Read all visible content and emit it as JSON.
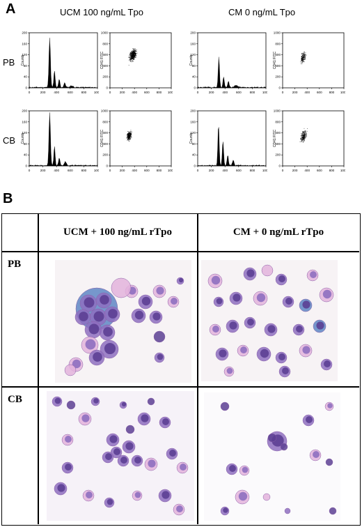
{
  "panel_a": {
    "letter": "A",
    "conditions": [
      "UCM 100 ng/mL Tpo",
      "CM 0 ng/mL Tpo"
    ],
    "rows": [
      "PB",
      "CB"
    ],
    "histogram": {
      "y_axis_label": "Counts",
      "x_ticks": [
        "0",
        "200",
        "400",
        "600",
        "800",
        "1000"
      ],
      "y_ticks": [
        "0",
        "40",
        "80",
        "120",
        "160",
        "200"
      ]
    },
    "scatter": {
      "y_axis_label": "CD41 FITC",
      "x_ticks": [
        "0",
        "200",
        "400",
        "600",
        "800",
        "1000"
      ],
      "y_ticks": [
        "0",
        "200",
        "400",
        "600",
        "800",
        "1000"
      ]
    }
  },
  "panel_b": {
    "letter": "B",
    "columns": [
      "UCM + 100 ng/mL rTpo",
      "CM + 0 ng/mL rTpo"
    ],
    "rows": [
      "PB",
      "CB"
    ]
  },
  "colors": {
    "micro_background": "#f7f3f5",
    "cell_purple": "#8e6fc0",
    "cell_pink": "#e3b3dc",
    "nucleus_dark": "#5c3f93",
    "cytoplasm_blue": "#5f86c4"
  }
}
